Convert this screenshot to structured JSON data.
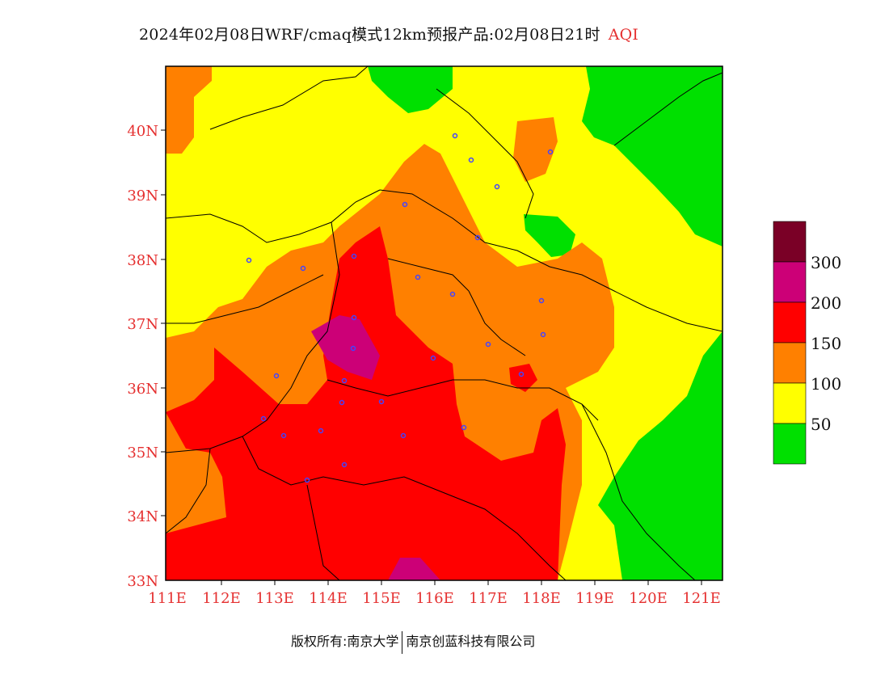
{
  "title": {
    "main": "2024年02月08日WRF/cmaq模式12km预报产品:02月08日21时",
    "variable": "AQI"
  },
  "axes": {
    "lat_ticks": [
      "40N",
      "39N",
      "38N",
      "37N",
      "36N",
      "35N",
      "34N",
      "33N"
    ],
    "lon_ticks": [
      "111E",
      "112E",
      "113E",
      "114E",
      "115E",
      "116E",
      "117E",
      "118E",
      "119E",
      "120E",
      "121E"
    ],
    "label_color": "#e53030"
  },
  "legend": {
    "labels": [
      "300",
      "200",
      "150",
      "100",
      "50"
    ],
    "colors": [
      "#7a0026",
      "#cc0077",
      "#ff0000",
      "#ff8000",
      "#ffff00",
      "#00e000"
    ]
  },
  "footer": {
    "left": "版权所有:南京大学",
    "right": "南京创蓝科技有限公司"
  }
}
